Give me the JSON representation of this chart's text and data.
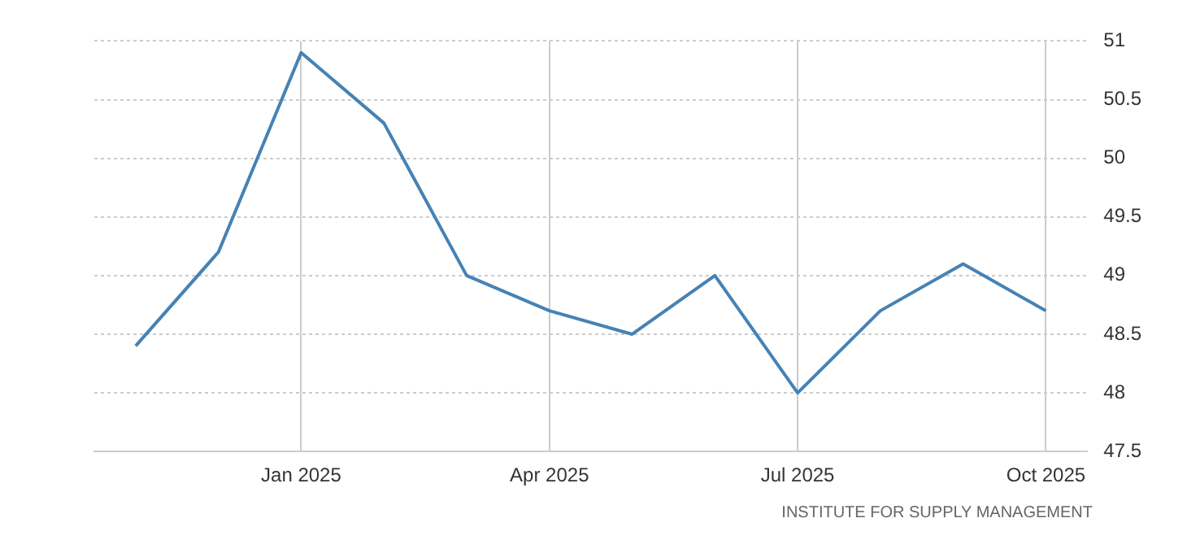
{
  "chart_data": {
    "type": "line",
    "categories": [
      null,
      null,
      "Jan 2025",
      null,
      null,
      "Apr 2025",
      null,
      null,
      "Jul 2025",
      null,
      null,
      "Oct 2025"
    ],
    "series": [
      {
        "color": "#4682b4",
        "values": [
          48.4,
          49.2,
          50.9,
          50.3,
          49.0,
          48.7,
          48.5,
          49.0,
          48.0,
          48.7,
          49.1,
          48.7
        ]
      }
    ],
    "ylim": [
      47.5,
      51
    ],
    "yticks": [
      47.5,
      48,
      48.5,
      49,
      49.5,
      50,
      50.5,
      51
    ],
    "grid": true,
    "legend": false,
    "marker": "none",
    "line_style": "solid",
    "annotations": [
      "INSTITUTE FOR SUPPLY MANAGEMENT"
    ]
  }
}
